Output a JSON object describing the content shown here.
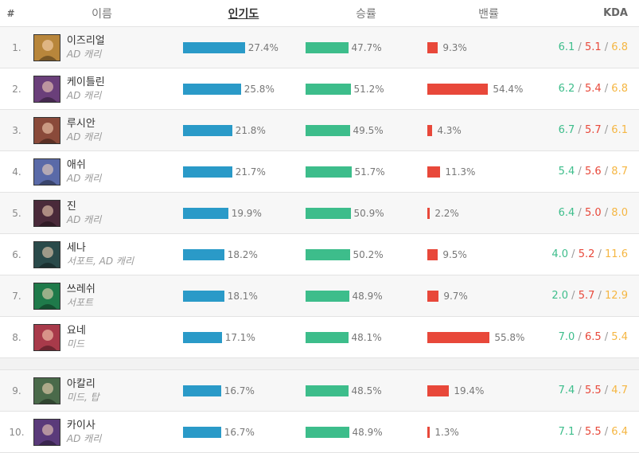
{
  "header": {
    "rank": "#",
    "name": "이름",
    "popularity": "인기도",
    "win_rate": "승률",
    "ban_rate": "밴률",
    "kda": "KDA"
  },
  "colors": {
    "pop": "#2a9ac8",
    "win": "#3dbd8b",
    "ban": "#e8483a",
    "assist": "#f5b642"
  },
  "champions": [
    {
      "rank": "1.",
      "name": "이즈리얼",
      "role": "AD 캐리",
      "pop": "27.4%",
      "pop_v": 27.4,
      "win": "47.7%",
      "win_v": 47.7,
      "ban": "9.3%",
      "ban_v": 9.3,
      "k": "6.1",
      "d": "5.1",
      "a": "6.8",
      "color": "#b8863b"
    },
    {
      "rank": "2.",
      "name": "케이틀린",
      "role": "AD 캐리",
      "pop": "25.8%",
      "pop_v": 25.8,
      "win": "51.2%",
      "win_v": 51.2,
      "ban": "54.4%",
      "ban_v": 54.4,
      "k": "6.2",
      "d": "5.4",
      "a": "6.8",
      "color": "#6a3f7a"
    },
    {
      "rank": "3.",
      "name": "루시안",
      "role": "AD 캐리",
      "pop": "21.8%",
      "pop_v": 21.8,
      "win": "49.5%",
      "win_v": 49.5,
      "ban": "4.3%",
      "ban_v": 4.3,
      "k": "6.7",
      "d": "5.7",
      "a": "6.1",
      "color": "#8a4a3a"
    },
    {
      "rank": "4.",
      "name": "애쉬",
      "role": "AD 캐리",
      "pop": "21.7%",
      "pop_v": 21.7,
      "win": "51.7%",
      "win_v": 51.7,
      "ban": "11.3%",
      "ban_v": 11.3,
      "k": "5.4",
      "d": "5.6",
      "a": "8.7",
      "color": "#5a6aa8"
    },
    {
      "rank": "5.",
      "name": "진",
      "role": "AD 캐리",
      "pop": "19.9%",
      "pop_v": 19.9,
      "win": "50.9%",
      "win_v": 50.9,
      "ban": "2.2%",
      "ban_v": 2.2,
      "k": "6.4",
      "d": "5.0",
      "a": "8.0",
      "color": "#4a2a3a"
    },
    {
      "rank": "6.",
      "name": "세나",
      "role": "서포트, AD 캐리",
      "pop": "18.2%",
      "pop_v": 18.2,
      "win": "50.2%",
      "win_v": 50.2,
      "ban": "9.5%",
      "ban_v": 9.5,
      "k": "4.0",
      "d": "5.2",
      "a": "11.6",
      "color": "#2a4a4a"
    },
    {
      "rank": "7.",
      "name": "쓰레쉬",
      "role": "서포트",
      "pop": "18.1%",
      "pop_v": 18.1,
      "win": "48.9%",
      "win_v": 48.9,
      "ban": "9.7%",
      "ban_v": 9.7,
      "k": "2.0",
      "d": "5.7",
      "a": "12.9",
      "color": "#1f7a4a"
    },
    {
      "rank": "8.",
      "name": "요네",
      "role": "미드",
      "pop": "17.1%",
      "pop_v": 17.1,
      "win": "48.1%",
      "win_v": 48.1,
      "ban": "55.8%",
      "ban_v": 55.8,
      "k": "7.0",
      "d": "6.5",
      "a": "5.4",
      "color": "#a83a4a"
    },
    {
      "rank": "9.",
      "name": "아칼리",
      "role": "미드, 탑",
      "pop": "16.7%",
      "pop_v": 16.7,
      "win": "48.5%",
      "win_v": 48.5,
      "ban": "19.4%",
      "ban_v": 19.4,
      "k": "7.4",
      "d": "5.5",
      "a": "4.7",
      "color": "#4a6a4a"
    },
    {
      "rank": "10.",
      "name": "카이사",
      "role": "AD 캐리",
      "pop": "16.7%",
      "pop_v": 16.7,
      "win": "48.9%",
      "win_v": 48.9,
      "ban": "1.3%",
      "ban_v": 1.3,
      "k": "7.1",
      "d": "5.5",
      "a": "6.4",
      "color": "#5a3a7a"
    }
  ]
}
